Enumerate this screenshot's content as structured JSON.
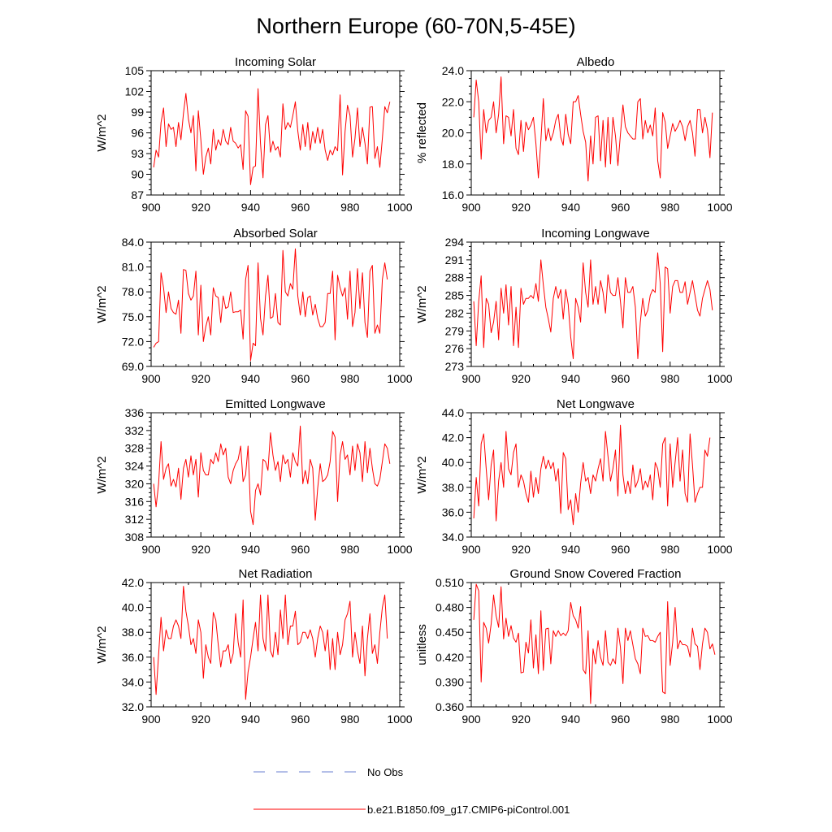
{
  "title": "Northern Europe (60-70N,5-45E)",
  "colors": {
    "model": "#ff0000",
    "obs": "#6a7fd0",
    "axis": "#000000"
  },
  "legend": {
    "obs_label": "No Obs",
    "model_label": "b.e21.B1850.f09_g17.CMIP6-piControl.001"
  },
  "chart_data": [
    {
      "type": "line",
      "title": "Incoming Solar",
      "ylabel": "W/m^2",
      "xlim": [
        900,
        1000
      ],
      "ylim": [
        87,
        105
      ],
      "xticks": [
        900,
        920,
        940,
        960,
        980,
        1000
      ],
      "yticks": [
        87,
        90,
        93,
        96,
        99,
        102,
        105
      ],
      "ytick_labels": [
        "87",
        "90",
        "93",
        "96",
        "99",
        "102",
        "105"
      ],
      "x_start": 901,
      "values": [
        91.0,
        93.5,
        92.5,
        97.5,
        99.6,
        94.0,
        97.3,
        96.5,
        96.8,
        94.0,
        97.5,
        95.0,
        98.8,
        101.7,
        98.0,
        96.0,
        98.5,
        90.5,
        99.2,
        95.0,
        90.0,
        92.5,
        93.8,
        91.5,
        96.5,
        93.5,
        95.0,
        94.2,
        96.5,
        94.8,
        94.3,
        96.8,
        94.8,
        94.5,
        93.8,
        94.3,
        90.7,
        99.2,
        98.4,
        88.5,
        91.0,
        91.2,
        102.4,
        94.5,
        89.5,
        97.2,
        98.5,
        93.2,
        94.8,
        93.5,
        94.0,
        92.5,
        100.2,
        96.5,
        97.5,
        96.8,
        98.5,
        100.5,
        96.3,
        93.5,
        97.2,
        94.0,
        97.5,
        93.5,
        96.2,
        94.5,
        96.8,
        94.5,
        96.5,
        93.5,
        92.0,
        93.5,
        92.8,
        94.0,
        93.4,
        101.5,
        89.9,
        96.2,
        100.0,
        98.5,
        92.5,
        95.2,
        99.6,
        94.0,
        96.8,
        94.5,
        91.5,
        99.7,
        99.8,
        92.3,
        94.0,
        91.0,
        95.2,
        99.8,
        98.9,
        100.5
      ]
    },
    {
      "type": "line",
      "title": "Albedo",
      "ylabel": "% reflected",
      "xlim": [
        900,
        1000
      ],
      "ylim": [
        16,
        24
      ],
      "xticks": [
        900,
        920,
        940,
        960,
        980,
        1000
      ],
      "yticks": [
        16,
        18,
        20,
        22,
        24
      ],
      "ytick_labels": [
        "16.0",
        "18.0",
        "20.0",
        "22.0",
        "24.0"
      ],
      "x_start": 901,
      "values": [
        21.0,
        23.4,
        22.0,
        18.3,
        21.5,
        20.0,
        20.8,
        21.0,
        22.0,
        20.0,
        21.2,
        23.6,
        19.3,
        21.1,
        21.0,
        19.8,
        21.5,
        19.0,
        18.6,
        20.8,
        18.8,
        20.7,
        20.2,
        20.5,
        21.0,
        19.3,
        17.1,
        19.5,
        22.2,
        19.5,
        20.3,
        19.5,
        20.0,
        20.8,
        21.2,
        19.7,
        19.2,
        21.2,
        19.9,
        19.3,
        22.0,
        22.0,
        22.4,
        21.2,
        20.1,
        19.4,
        16.9,
        19.8,
        18.0,
        21.0,
        21.1,
        18.2,
        20.8,
        17.8,
        21.0,
        18.0,
        21.0,
        19.8,
        17.9,
        19.9,
        21.8,
        20.4,
        20.0,
        19.8,
        19.6,
        19.6,
        22.0,
        22.2,
        19.6,
        20.8,
        20.0,
        20.5,
        19.8,
        21.6,
        18.2,
        17.1,
        21.3,
        20.7,
        19.0,
        19.8,
        20.6,
        20.1,
        20.4,
        20.8,
        20.4,
        19.5,
        20.4,
        20.8,
        20.0,
        18.5,
        21.5,
        21.5,
        20.0,
        21.0,
        20.2,
        18.4,
        21.3
      ]
    },
    {
      "type": "line",
      "title": "Absorbed Solar",
      "ylabel": "W/m^2",
      "xlim": [
        900,
        1000
      ],
      "ylim": [
        69,
        84
      ],
      "xticks": [
        900,
        920,
        940,
        960,
        980,
        1000
      ],
      "yticks": [
        69,
        72,
        75,
        78,
        81,
        84
      ],
      "ytick_labels": [
        "69.0",
        "72.0",
        "75.0",
        "78.0",
        "81.0",
        "84.0"
      ],
      "x_start": 901,
      "values": [
        71.3,
        71.8,
        72.0,
        80.3,
        78.5,
        75.5,
        78.0,
        76.0,
        75.5,
        75.3,
        77.0,
        73.0,
        80.7,
        80.6,
        77.8,
        77.0,
        77.5,
        80.5,
        72.8,
        78.8,
        72.0,
        73.8,
        75.0,
        72.8,
        78.5,
        77.5,
        77.3,
        74.3,
        77.5,
        76.0,
        76.2,
        78.0,
        75.5,
        75.6,
        75.6,
        75.8,
        72.3,
        79.5,
        81.2,
        69.7,
        71.8,
        71.5,
        81.5,
        74.8,
        72.8,
        77.5,
        80.0,
        74.8,
        75.0,
        77.8,
        74.3,
        74.0,
        83.0,
        78.0,
        77.5,
        79.0,
        78.3,
        83.2,
        77.5,
        75.2,
        78.0,
        75.0,
        77.3,
        77.5,
        75.2,
        76.5,
        74.8,
        73.8,
        73.8,
        74.3,
        77.8,
        77.8,
        80.5,
        72.2,
        80.0,
        78.5,
        77.5,
        78.5,
        74.7,
        80.5,
        73.8,
        75.5,
        80.8,
        76.0,
        80.3,
        74.3,
        72.5,
        80.5,
        81.2,
        73.0,
        74.0,
        73.0,
        79.5,
        81.5,
        79.5
      ]
    },
    {
      "type": "line",
      "title": "Incoming Longwave",
      "ylabel": "W/m^2",
      "xlim": [
        900,
        1000
      ],
      "ylim": [
        273,
        294
      ],
      "xticks": [
        900,
        920,
        940,
        960,
        980,
        1000
      ],
      "yticks": [
        273,
        276,
        279,
        282,
        285,
        288,
        291,
        294
      ],
      "ytick_labels": [
        "273",
        "276",
        "279",
        "282",
        "285",
        "288",
        "291",
        "294"
      ],
      "x_start": 901,
      "values": [
        284.0,
        276.5,
        284.0,
        288.3,
        276.2,
        284.5,
        283.5,
        278.7,
        280.5,
        284.0,
        277.5,
        286.2,
        282.0,
        286.8,
        280.0,
        286.5,
        276.5,
        283.0,
        276.2,
        286.2,
        283.5,
        284.5,
        284.5,
        285.0,
        284.5,
        287.0,
        284.0,
        291.0,
        286.8,
        283.0,
        281.0,
        278.8,
        284.5,
        286.5,
        284.5,
        286.0,
        281.0,
        286.0,
        283.5,
        278.0,
        274.3,
        284.5,
        283.0,
        280.5,
        290.5,
        285.5,
        283.0,
        291.0,
        283.5,
        286.5,
        283.5,
        287.5,
        285.5,
        282.0,
        288.5,
        285.5,
        285.0,
        285.0,
        288.0,
        284.0,
        279.5,
        288.0,
        285.5,
        285.5,
        286.5,
        283.0,
        274.3,
        280.5,
        284.5,
        281.5,
        282.5,
        285.0,
        286.0,
        285.5,
        292.2,
        287.0,
        275.5,
        289.8,
        289.5,
        282.0,
        286.5,
        287.5,
        287.5,
        285.5,
        285.5,
        287.3,
        283.5,
        285.5,
        287.5,
        285.0,
        282.5,
        281.5,
        284.5,
        286.0,
        287.5,
        286.0,
        282.5
      ]
    },
    {
      "type": "line",
      "title": "Emitted Longwave",
      "ylabel": "W/m^2",
      "xlim": [
        900,
        1000
      ],
      "ylim": [
        308,
        336
      ],
      "xticks": [
        900,
        920,
        940,
        960,
        980,
        1000
      ],
      "yticks": [
        308,
        312,
        316,
        320,
        324,
        328,
        332,
        336
      ],
      "ytick_labels": [
        "308",
        "312",
        "316",
        "320",
        "324",
        "328",
        "332",
        "336"
      ],
      "x_start": 901,
      "values": [
        320.0,
        314.8,
        320.0,
        329.5,
        321.0,
        323.5,
        324.5,
        319.5,
        321.0,
        319.3,
        323.5,
        316.5,
        323.5,
        325.5,
        321.5,
        326.3,
        322.0,
        325.5,
        317.0,
        327.0,
        323.0,
        322.0,
        322.0,
        325.5,
        324.5,
        327.0,
        325.0,
        329.0,
        326.5,
        328.0,
        321.5,
        320.0,
        323.0,
        324.5,
        325.5,
        328.5,
        320.5,
        322.0,
        328.5,
        313.8,
        310.8,
        318.5,
        320.0,
        317.5,
        325.5,
        325.0,
        323.0,
        331.5,
        326.5,
        323.0,
        325.0,
        320.5,
        326.5,
        324.5,
        325.5,
        321.5,
        327.0,
        325.0,
        324.0,
        333.0,
        320.0,
        323.0,
        320.0,
        325.5,
        323.5,
        311.8,
        319.0,
        324.5,
        320.5,
        321.0,
        322.0,
        325.0,
        331.8,
        330.5,
        316.0,
        326.5,
        329.5,
        325.5,
        326.5,
        322.0,
        328.5,
        323.0,
        329.0,
        327.0,
        320.5,
        329.5,
        322.5,
        328.0,
        323.5,
        320.0,
        319.5,
        321.0,
        325.0,
        329.0,
        328.0,
        324.5
      ]
    },
    {
      "type": "line",
      "title": "Net Longwave",
      "ylabel": "W/m^2",
      "xlim": [
        900,
        1000
      ],
      "ylim": [
        34,
        44
      ],
      "xticks": [
        900,
        920,
        940,
        960,
        980,
        1000
      ],
      "yticks": [
        34,
        36,
        38,
        40,
        42,
        44
      ],
      "ytick_labels": [
        "34.0",
        "36.0",
        "38.0",
        "40.0",
        "42.0",
        "44.0"
      ],
      "x_start": 901,
      "values": [
        35.5,
        38.8,
        36.5,
        41.5,
        42.3,
        39.5,
        37.0,
        39.8,
        41.0,
        35.3,
        38.5,
        40.0,
        38.0,
        42.5,
        39.5,
        39.0,
        40.8,
        41.5,
        38.0,
        39.0,
        38.5,
        37.5,
        36.8,
        39.3,
        37.2,
        38.8,
        37.5,
        39.5,
        40.5,
        39.5,
        40.2,
        39.5,
        40.0,
        38.5,
        39.5,
        35.9,
        40.8,
        40.3,
        36.2,
        37.0,
        35.0,
        37.5,
        36.0,
        38.3,
        40.0,
        38.5,
        38.8,
        37.5,
        39.0,
        38.5,
        39.5,
        40.3,
        38.5,
        42.5,
        40.5,
        38.5,
        39.5,
        41.0,
        37.3,
        43.0,
        39.0,
        37.5,
        38.5,
        37.5,
        39.8,
        38.0,
        38.5,
        39.5,
        37.8,
        38.5,
        38.0,
        39.0,
        37.0,
        40.0,
        39.5,
        38.0,
        41.5,
        42.0,
        36.5,
        41.5,
        38.0,
        40.0,
        42.0,
        38.5,
        41.0,
        37.5,
        36.8,
        42.3,
        39.8,
        36.8,
        37.5,
        38.0,
        38.0,
        41.0,
        40.5,
        42.0
      ]
    },
    {
      "type": "line",
      "title": "Net Radiation",
      "ylabel": "W/m^2",
      "xlim": [
        900,
        1000
      ],
      "ylim": [
        32,
        42
      ],
      "xticks": [
        900,
        920,
        940,
        960,
        980,
        1000
      ],
      "yticks": [
        32,
        34,
        36,
        38,
        40,
        42
      ],
      "ytick_labels": [
        "32.0",
        "34.0",
        "36.0",
        "38.0",
        "40.0",
        "42.0"
      ],
      "x_start": 901,
      "values": [
        36.0,
        33.0,
        36.2,
        39.2,
        36.5,
        38.2,
        37.5,
        37.5,
        38.5,
        39.0,
        38.5,
        37.5,
        41.7,
        39.7,
        38.5,
        37.0,
        37.5,
        36.3,
        39.0,
        38.0,
        34.3,
        37.0,
        36.0,
        35.5,
        39.6,
        39.0,
        37.0,
        35.2,
        36.5,
        36.5,
        37.0,
        35.5,
        36.3,
        39.5,
        37.2,
        36.0,
        40.6,
        32.6,
        34.8,
        36.0,
        37.5,
        38.8,
        36.5,
        41.0,
        37.5,
        36.5,
        41.0,
        36.5,
        36.0,
        38.0,
        36.2,
        39.8,
        37.5,
        41.0,
        37.0,
        38.5,
        38.5,
        39.7,
        37.0,
        37.2,
        38.0,
        38.0,
        37.5,
        38.2,
        37.5,
        36.0,
        37.5,
        38.5,
        38.0,
        36.5,
        38.2,
        35.0,
        37.5,
        35.0,
        38.0,
        36.2,
        37.0,
        39.0,
        39.5,
        40.5,
        36.0,
        38.0,
        36.5,
        35.5,
        38.5,
        34.5,
        37.5,
        39.5,
        36.3,
        37.0,
        35.5,
        38.0,
        40.0,
        41.0,
        37.5
      ]
    },
    {
      "type": "line",
      "title": "Ground Snow Covered Fraction",
      "ylabel": "unitless",
      "xlim": [
        900,
        1000
      ],
      "ylim": [
        0.36,
        0.51
      ],
      "xticks": [
        900,
        920,
        940,
        960,
        980,
        1000
      ],
      "yticks": [
        0.36,
        0.39,
        0.42,
        0.45,
        0.48,
        0.51
      ],
      "ytick_labels": [
        "0.360",
        "0.390",
        "0.420",
        "0.450",
        "0.480",
        "0.510"
      ],
      "x_start": 901,
      "values": [
        0.465,
        0.508,
        0.5,
        0.39,
        0.462,
        0.455,
        0.437,
        0.46,
        0.495,
        0.47,
        0.456,
        0.505,
        0.442,
        0.467,
        0.445,
        0.458,
        0.443,
        0.438,
        0.449,
        0.401,
        0.402,
        0.438,
        0.425,
        0.465,
        0.407,
        0.447,
        0.4,
        0.476,
        0.404,
        0.454,
        0.455,
        0.412,
        0.452,
        0.445,
        0.452,
        0.446,
        0.449,
        0.446,
        0.452,
        0.486,
        0.47,
        0.465,
        0.455,
        0.481,
        0.405,
        0.4,
        0.452,
        0.364,
        0.43,
        0.412,
        0.44,
        0.42,
        0.41,
        0.452,
        0.414,
        0.41,
        0.418,
        0.412,
        0.455,
        0.432,
        0.388,
        0.455,
        0.44,
        0.452,
        0.435,
        0.418,
        0.412,
        0.4,
        0.455,
        0.445,
        0.446,
        0.44,
        0.44,
        0.438,
        0.445,
        0.45,
        0.378,
        0.376,
        0.487,
        0.41,
        0.438,
        0.48,
        0.43,
        0.44,
        0.435,
        0.435,
        0.433,
        0.42,
        0.455,
        0.436,
        0.433,
        0.405,
        0.436,
        0.455,
        0.45,
        0.43,
        0.436,
        0.423
      ]
    }
  ]
}
